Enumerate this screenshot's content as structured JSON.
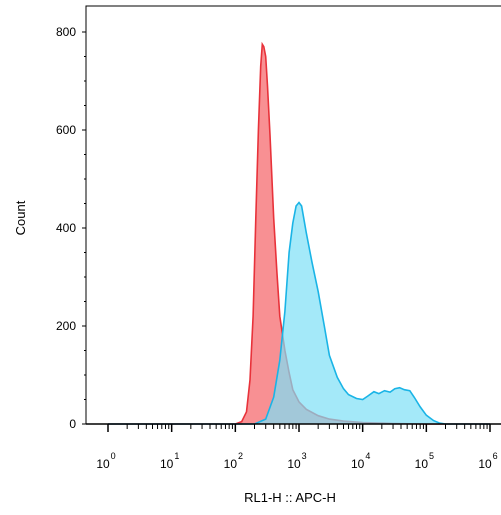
{
  "chart_data": {
    "type": "area",
    "title": "",
    "xlabel": "RL1-H :: APC-H",
    "ylabel": "Count",
    "x_scale": "log",
    "xlim": [
      1,
      1000000
    ],
    "ylim": [
      0,
      820
    ],
    "y_ticks": [
      0,
      200,
      400,
      600,
      800
    ],
    "x_ticks": [
      {
        "base": "10",
        "exp": "0",
        "value": 1
      },
      {
        "base": "10",
        "exp": "1",
        "value": 10
      },
      {
        "base": "10",
        "exp": "2",
        "value": 100
      },
      {
        "base": "10",
        "exp": "3",
        "value": 1000
      },
      {
        "base": "10",
        "exp": "4",
        "value": 10000
      },
      {
        "base": "10",
        "exp": "5",
        "value": 100000
      },
      {
        "base": "10",
        "exp": "6",
        "value": 1000000
      }
    ],
    "grid": false,
    "legend": "none",
    "series": [
      {
        "color_fill": "#f77d80",
        "color_line": "#e8323a",
        "points": [
          [
            1,
            0
          ],
          [
            100,
            0
          ],
          [
            126,
            5
          ],
          [
            150,
            25
          ],
          [
            170,
            90
          ],
          [
            190,
            220
          ],
          [
            210,
            420
          ],
          [
            230,
            600
          ],
          [
            250,
            730
          ],
          [
            265,
            775
          ],
          [
            280,
            770
          ],
          [
            300,
            750
          ],
          [
            320,
            690
          ],
          [
            350,
            590
          ],
          [
            400,
            420
          ],
          [
            450,
            310
          ],
          [
            500,
            220
          ],
          [
            600,
            150
          ],
          [
            700,
            105
          ],
          [
            800,
            70
          ],
          [
            1000,
            45
          ],
          [
            1300,
            30
          ],
          [
            2000,
            17
          ],
          [
            3000,
            10
          ],
          [
            5000,
            6
          ],
          [
            10000,
            3
          ],
          [
            30000,
            1
          ],
          [
            100000,
            0
          ],
          [
            1000000,
            0
          ]
        ]
      },
      {
        "color_fill": "#7ee0f7",
        "color_line": "#1ab4e6",
        "points": [
          [
            1,
            0
          ],
          [
            200,
            0
          ],
          [
            300,
            10
          ],
          [
            400,
            55
          ],
          [
            500,
            130
          ],
          [
            600,
            230
          ],
          [
            700,
            350
          ],
          [
            800,
            410
          ],
          [
            900,
            445
          ],
          [
            1000,
            452
          ],
          [
            1100,
            445
          ],
          [
            1300,
            390
          ],
          [
            1600,
            330
          ],
          [
            2000,
            270
          ],
          [
            2500,
            200
          ],
          [
            3000,
            140
          ],
          [
            4000,
            95
          ],
          [
            5000,
            72
          ],
          [
            6000,
            60
          ],
          [
            8000,
            52
          ],
          [
            10000,
            50
          ],
          [
            12000,
            57
          ],
          [
            15000,
            66
          ],
          [
            18000,
            62
          ],
          [
            22000,
            68
          ],
          [
            27000,
            65
          ],
          [
            32000,
            72
          ],
          [
            38000,
            74
          ],
          [
            45000,
            70
          ],
          [
            55000,
            68
          ],
          [
            65000,
            54
          ],
          [
            80000,
            35
          ],
          [
            100000,
            18
          ],
          [
            130000,
            7
          ],
          [
            160000,
            2
          ],
          [
            200000,
            0
          ],
          [
            1000000,
            0
          ]
        ]
      }
    ]
  }
}
